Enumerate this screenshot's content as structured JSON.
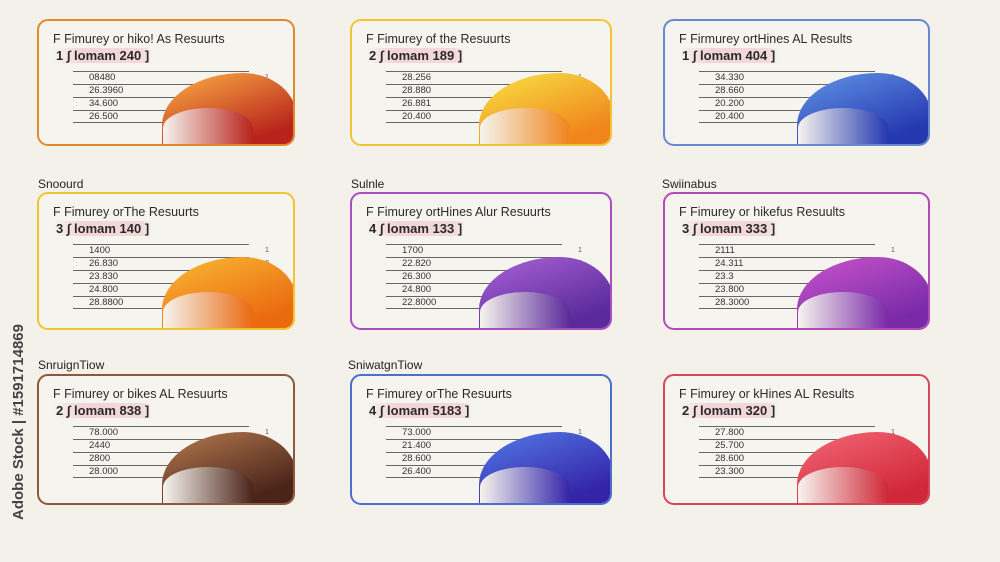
{
  "watermark": "Adobe Stock | #1591714869",
  "sections": [
    "Snoourd",
    "Sulnle",
    "Swiinabus",
    "SnruignTiow",
    "SniwatgnTiow"
  ],
  "cards": [
    {
      "title": "F Fimurey or hiko! As Resuurts",
      "sub": "1 ∫ lomam 240 ]",
      "rows": [
        "08480",
        "26.3960",
        "34.600",
        "26.500"
      ],
      "marks": [
        "1",
        "0",
        "0"
      ],
      "color": "#e08a2c",
      "grad": [
        "#f5a040",
        "#b8241c"
      ]
    },
    {
      "title": "F Fimurey of the Resuurts",
      "sub": "2 ∫ lomam 189 ]",
      "rows": [
        "28.256",
        "28.880",
        "26.881",
        "20.400"
      ],
      "marks": [
        "1",
        "0",
        "0"
      ],
      "color": "#f0c535",
      "grad": [
        "#f7d840",
        "#f0851c"
      ]
    },
    {
      "title": "F Firmurey ortHines AL Results",
      "sub": "1 ∫ lomam 404 ]",
      "rows": [
        "34.330",
        "28.660",
        "20.200",
        "20.400"
      ],
      "marks": [
        "1",
        "0",
        "0"
      ],
      "color": "#6a88d2",
      "grad": [
        "#5b8ae0",
        "#2438b0"
      ]
    },
    {
      "title": "F Fimurey orThe Resuurts",
      "sub": "3 ∫ lomam 140 ]",
      "rows": [
        "1400",
        "26.830",
        "23.830",
        "24.800",
        "28.8800"
      ],
      "marks": [
        "1",
        "0",
        "0",
        "0"
      ],
      "color": "#f0c530",
      "grad": [
        "#f8b030",
        "#ea6a10"
      ]
    },
    {
      "title": "F Fimurey ortHines Alur Resuurts",
      "sub": "4 ∫ lomam 133 ]",
      "rows": [
        "1700",
        "22.820",
        "26.300",
        "24.800",
        "22.8000"
      ],
      "marks": [
        "1",
        "0",
        "0",
        "0"
      ],
      "color": "#a94fc0",
      "grad": [
        "#a05cd0",
        "#5a2a9a"
      ]
    },
    {
      "title": "F Fimurey or hikefus Resuults",
      "sub": "3 ∫ lomam 333 ]",
      "rows": [
        "2111",
        "24.311",
        "23.3",
        "23.800",
        "28.3000"
      ],
      "marks": [
        "1",
        "0",
        "0",
        "0"
      ],
      "color": "#b24ab8",
      "grad": [
        "#c050c8",
        "#7a2aa8"
      ]
    },
    {
      "title": "F Fimurey or bikes AL Resuurts",
      "sub": "2 ∫ lomam 838 ]",
      "rows": [
        "78.000",
        "2440",
        "2800",
        "28.000"
      ],
      "marks": [
        "1",
        "0",
        "0"
      ],
      "color": "#8b5a3c",
      "grad": [
        "#a8704a",
        "#4a2418"
      ]
    },
    {
      "title": "F Fimurey orThe Resuurts",
      "sub": "4 ∫ lomam 5183 ]",
      "rows": [
        "73.000",
        "21.400",
        "28.600",
        "26.400"
      ],
      "marks": [
        "1",
        "0",
        "0"
      ],
      "color": "#4a6fd0",
      "grad": [
        "#5070e0",
        "#3424a8"
      ]
    },
    {
      "title": "F Fimurey or kHines AL Results",
      "sub": "2 ∫ lomam 320 ]",
      "rows": [
        "27.800",
        "25.700",
        "28.600",
        "23.300"
      ],
      "marks": [
        "1",
        "0",
        "0"
      ],
      "color": "#d24a5a",
      "grad": [
        "#f06070",
        "#d02838"
      ]
    }
  ]
}
